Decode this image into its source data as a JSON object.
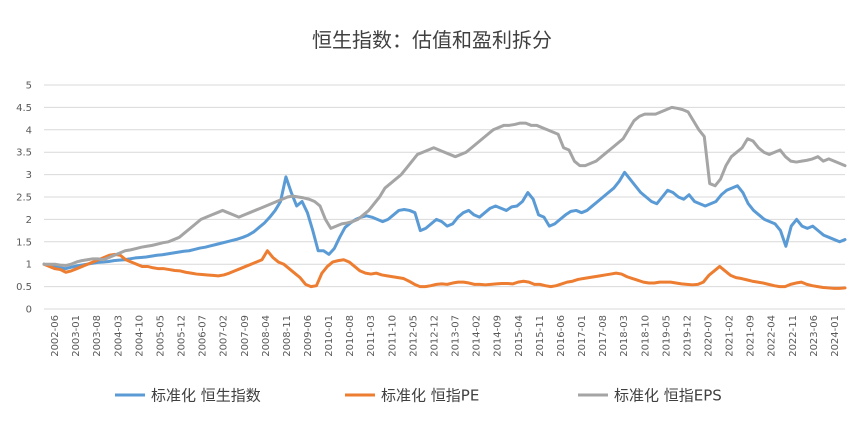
{
  "chart_data": {
    "type": "line",
    "title": "恒生指数：估值和盈利拆分",
    "xlabel": "",
    "ylabel": "",
    "ylim": [
      0,
      5
    ],
    "yticks": [
      "0",
      "0.5",
      "1",
      "1.5",
      "2",
      "2.5",
      "3",
      "3.5",
      "4",
      "4.5",
      "5"
    ],
    "grid": true,
    "legend_position": "bottom",
    "x_tick_labels": [
      "2002-06",
      "2003-01",
      "2003-08",
      "2004-03",
      "2004-10",
      "2005-05",
      "2005-12",
      "2006-07",
      "2007-02",
      "2007-09",
      "2008-04",
      "2008-11",
      "2009-06",
      "2010-01",
      "2010-08",
      "2011-03",
      "2011-10",
      "2012-05",
      "2012-12",
      "2013-07",
      "2014-02",
      "2014-09",
      "2015-04",
      "2015-11",
      "2016-06",
      "2017-01",
      "2017-08",
      "2018-03",
      "2018-10",
      "2019-05",
      "2019-12",
      "2020-07",
      "2021-02",
      "2021-09",
      "2022-04",
      "2022-11",
      "2023-06",
      "2024-01"
    ],
    "series": [
      {
        "name": "标准化 恒生指数",
        "color": "#5B9BD5",
        "values": [
          1.0,
          0.97,
          0.95,
          0.92,
          0.9,
          0.93,
          0.96,
          0.98,
          1.0,
          1.02,
          1.04,
          1.05,
          1.06,
          1.08,
          1.09,
          1.1,
          1.12,
          1.14,
          1.15,
          1.16,
          1.18,
          1.2,
          1.21,
          1.23,
          1.25,
          1.27,
          1.29,
          1.3,
          1.33,
          1.36,
          1.38,
          1.41,
          1.44,
          1.47,
          1.5,
          1.53,
          1.56,
          1.6,
          1.65,
          1.72,
          1.82,
          1.92,
          2.05,
          2.2,
          2.4,
          2.95,
          2.6,
          2.3,
          2.4,
          2.15,
          1.75,
          1.3,
          1.3,
          1.22,
          1.35,
          1.6,
          1.82,
          1.92,
          2.0,
          2.05,
          2.08,
          2.05,
          2.0,
          1.95,
          2.0,
          2.1,
          2.2,
          2.22,
          2.2,
          2.15,
          1.75,
          1.8,
          1.9,
          2.0,
          1.95,
          1.85,
          1.9,
          2.05,
          2.15,
          2.2,
          2.1,
          2.05,
          2.15,
          2.25,
          2.3,
          2.25,
          2.2,
          2.28,
          2.3,
          2.4,
          2.6,
          2.45,
          2.1,
          2.05,
          1.85,
          1.9,
          2.0,
          2.1,
          2.18,
          2.2,
          2.15,
          2.2,
          2.3,
          2.4,
          2.5,
          2.6,
          2.7,
          2.85,
          3.05,
          2.9,
          2.75,
          2.6,
          2.5,
          2.4,
          2.35,
          2.5,
          2.65,
          2.6,
          2.5,
          2.45,
          2.55,
          2.4,
          2.35,
          2.3,
          2.35,
          2.4,
          2.55,
          2.65,
          2.7,
          2.75,
          2.6,
          2.35,
          2.2,
          2.1,
          2.0,
          1.95,
          1.9,
          1.75,
          1.4,
          1.85,
          2.0,
          1.85,
          1.8,
          1.85,
          1.75,
          1.65,
          1.6,
          1.55,
          1.5,
          1.55
        ]
      },
      {
        "name": "标准化 恒指PE",
        "color": "#ED7D31",
        "values": [
          1.0,
          0.95,
          0.9,
          0.88,
          0.82,
          0.85,
          0.9,
          0.95,
          1.0,
          1.05,
          1.1,
          1.15,
          1.2,
          1.22,
          1.2,
          1.1,
          1.05,
          1.0,
          0.95,
          0.95,
          0.92,
          0.9,
          0.9,
          0.88,
          0.86,
          0.85,
          0.82,
          0.8,
          0.78,
          0.77,
          0.76,
          0.75,
          0.74,
          0.76,
          0.8,
          0.85,
          0.9,
          0.95,
          1.0,
          1.05,
          1.1,
          1.3,
          1.15,
          1.05,
          1.0,
          0.9,
          0.8,
          0.7,
          0.55,
          0.5,
          0.52,
          0.8,
          0.95,
          1.05,
          1.08,
          1.1,
          1.05,
          0.95,
          0.85,
          0.8,
          0.78,
          0.8,
          0.76,
          0.74,
          0.72,
          0.7,
          0.68,
          0.62,
          0.55,
          0.5,
          0.5,
          0.52,
          0.55,
          0.56,
          0.55,
          0.58,
          0.6,
          0.6,
          0.58,
          0.55,
          0.55,
          0.54,
          0.55,
          0.56,
          0.57,
          0.57,
          0.56,
          0.6,
          0.62,
          0.6,
          0.55,
          0.55,
          0.52,
          0.5,
          0.52,
          0.56,
          0.6,
          0.62,
          0.66,
          0.68,
          0.7,
          0.72,
          0.74,
          0.76,
          0.78,
          0.8,
          0.78,
          0.72,
          0.68,
          0.64,
          0.6,
          0.58,
          0.58,
          0.6,
          0.6,
          0.6,
          0.58,
          0.56,
          0.55,
          0.54,
          0.55,
          0.6,
          0.75,
          0.85,
          0.95,
          0.85,
          0.75,
          0.7,
          0.68,
          0.65,
          0.62,
          0.6,
          0.58,
          0.55,
          0.52,
          0.5,
          0.5,
          0.55,
          0.58,
          0.6,
          0.55,
          0.52,
          0.5,
          0.48,
          0.47,
          0.46,
          0.46,
          0.47
        ]
      },
      {
        "name": "标准化 恒指EPS",
        "color": "#A5A5A5",
        "values": [
          1.0,
          1.0,
          1.0,
          0.98,
          0.97,
          1.0,
          1.05,
          1.08,
          1.1,
          1.12,
          1.12,
          1.1,
          1.15,
          1.2,
          1.25,
          1.3,
          1.32,
          1.35,
          1.38,
          1.4,
          1.42,
          1.45,
          1.48,
          1.5,
          1.55,
          1.6,
          1.7,
          1.8,
          1.9,
          2.0,
          2.05,
          2.1,
          2.15,
          2.2,
          2.15,
          2.1,
          2.05,
          2.1,
          2.15,
          2.2,
          2.25,
          2.3,
          2.35,
          2.4,
          2.45,
          2.5,
          2.52,
          2.5,
          2.48,
          2.45,
          2.4,
          2.3,
          2.0,
          1.8,
          1.85,
          1.9,
          1.92,
          1.95,
          2.0,
          2.1,
          2.2,
          2.35,
          2.5,
          2.7,
          2.8,
          2.9,
          3.0,
          3.15,
          3.3,
          3.45,
          3.5,
          3.55,
          3.6,
          3.55,
          3.5,
          3.45,
          3.4,
          3.45,
          3.5,
          3.6,
          3.7,
          3.8,
          3.9,
          4.0,
          4.05,
          4.1,
          4.1,
          4.12,
          4.15,
          4.15,
          4.1,
          4.1,
          4.05,
          4.0,
          3.95,
          3.9,
          3.6,
          3.55,
          3.3,
          3.2,
          3.2,
          3.25,
          3.3,
          3.4,
          3.5,
          3.6,
          3.7,
          3.8,
          4.0,
          4.2,
          4.3,
          4.35,
          4.35,
          4.35,
          4.4,
          4.45,
          4.5,
          4.48,
          4.45,
          4.4,
          4.2,
          4.0,
          3.85,
          2.8,
          2.75,
          2.9,
          3.2,
          3.4,
          3.5,
          3.6,
          3.8,
          3.75,
          3.6,
          3.5,
          3.45,
          3.5,
          3.55,
          3.4,
          3.3,
          3.28,
          3.3,
          3.32,
          3.35,
          3.4,
          3.3,
          3.35,
          3.3,
          3.25,
          3.2
        ]
      }
    ]
  }
}
